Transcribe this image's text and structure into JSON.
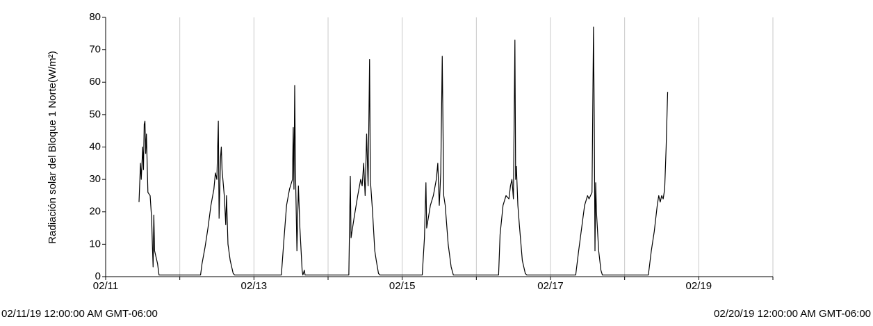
{
  "chart_data": {
    "type": "line",
    "y_label": "Radiación solar del Bloque 1 Norte(W/m²)",
    "start_label": "02/11/19 12:00:00 AM GMT-06:00",
    "end_label": "02/20/19 12:00:00 AM GMT-06:00",
    "color": "#000000",
    "grid": true,
    "xlim": [
      0,
      9
    ],
    "xticks": [
      {
        "value": 0,
        "label": "02/11"
      },
      {
        "value": 1,
        "label": null
      },
      {
        "value": 2,
        "label": "02/13"
      },
      {
        "value": 3,
        "label": null
      },
      {
        "value": 4,
        "label": "02/15"
      },
      {
        "value": 5,
        "label": null
      },
      {
        "value": 6,
        "label": "02/17"
      },
      {
        "value": 7,
        "label": null
      },
      {
        "value": 8,
        "label": "02/19"
      },
      {
        "value": 9,
        "label": null
      }
    ],
    "ylim": [
      0,
      80
    ],
    "yticks": [
      0,
      10,
      20,
      30,
      40,
      50,
      60,
      70,
      80
    ],
    "x": [
      0.45,
      0.47,
      0.48,
      0.5,
      0.51,
      0.52,
      0.53,
      0.54,
      0.55,
      0.57,
      0.6,
      0.62,
      0.63,
      0.64,
      0.65,
      0.66,
      0.68,
      0.7,
      0.72,
      1.28,
      1.3,
      1.34,
      1.38,
      1.42,
      1.46,
      1.48,
      1.5,
      1.52,
      1.53,
      1.55,
      1.56,
      1.57,
      1.6,
      1.62,
      1.63,
      1.65,
      1.68,
      1.72,
      1.74,
      2.37,
      2.4,
      2.44,
      2.48,
      2.52,
      2.53,
      2.54,
      2.55,
      2.56,
      2.58,
      2.59,
      2.6,
      2.62,
      2.65,
      2.66,
      2.68,
      2.69,
      3.28,
      3.3,
      3.31,
      3.35,
      3.4,
      3.44,
      3.46,
      3.48,
      3.5,
      3.52,
      3.54,
      3.56,
      3.57,
      3.6,
      3.63,
      3.65,
      3.68,
      3.7,
      4.27,
      4.3,
      4.32,
      4.33,
      4.38,
      4.42,
      4.46,
      4.48,
      4.5,
      4.52,
      4.54,
      4.56,
      4.58,
      4.62,
      4.66,
      4.69,
      5.3,
      5.32,
      5.36,
      5.4,
      5.44,
      5.46,
      5.48,
      5.5,
      5.52,
      5.53,
      5.54,
      5.56,
      5.58,
      5.62,
      5.66,
      5.68,
      6.34,
      6.38,
      6.42,
      6.46,
      6.5,
      6.52,
      6.56,
      6.58,
      6.59,
      6.6,
      6.61,
      6.62,
      6.65,
      6.68,
      6.7,
      7.32,
      7.36,
      7.4,
      7.44,
      7.46,
      7.48,
      7.5,
      7.52,
      7.54,
      7.56,
      7.58
    ],
    "values": [
      23,
      35,
      30,
      40,
      33,
      47,
      48,
      38,
      44,
      26,
      25,
      18,
      10,
      3,
      19,
      8,
      6,
      4,
      0.5,
      0.5,
      4,
      9,
      15,
      22,
      27,
      32,
      30,
      48,
      18,
      37,
      40,
      33,
      25,
      16,
      25,
      10,
      5,
      1,
      0.5,
      0.5,
      10,
      22,
      27,
      30,
      46,
      27,
      59,
      33,
      8,
      18,
      28,
      15,
      2,
      0.5,
      2,
      0.5,
      0.5,
      31,
      12,
      18,
      25,
      30,
      28,
      35,
      25,
      44,
      28,
      67,
      30,
      20,
      8,
      5,
      1,
      0.5,
      0.5,
      12,
      29,
      15,
      22,
      25,
      30,
      35,
      22,
      32,
      68,
      25,
      22,
      10,
      3,
      0.5,
      0.5,
      13,
      22,
      25,
      24,
      28,
      30,
      24,
      73,
      30,
      34,
      22,
      16,
      5,
      1,
      0.5,
      0.5,
      8,
      15,
      22,
      25,
      24,
      26,
      77,
      50,
      8,
      29,
      20,
      8,
      2,
      0.5,
      0.5,
      8,
      14,
      22,
      25,
      23,
      25,
      24,
      27,
      40,
      57
    ]
  }
}
